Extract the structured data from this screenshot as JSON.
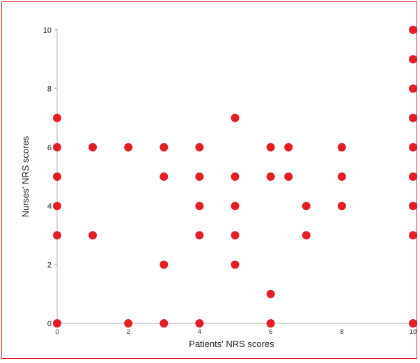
{
  "chart_data": {
    "type": "scatter",
    "title": "",
    "xlabel": "Patients' NRS scores",
    "ylabel": "Nurses' NRS scores",
    "xlim": [
      0,
      10
    ],
    "ylim": [
      0,
      10
    ],
    "x_ticks": [
      "0",
      "2",
      "4",
      "6",
      "8",
      "10"
    ],
    "y_ticks": [
      "0",
      "2",
      "4",
      "6",
      "8",
      "10"
    ],
    "grid": false,
    "marker_color": "#e31e24",
    "axis_color": "#b0b0b0",
    "points": [
      {
        "x": 0,
        "y": 7
      },
      {
        "x": 0,
        "y": 6
      },
      {
        "x": 0,
        "y": 5
      },
      {
        "x": 0,
        "y": 4
      },
      {
        "x": 0,
        "y": 3
      },
      {
        "x": 0,
        "y": 0
      },
      {
        "x": 1,
        "y": 6
      },
      {
        "x": 1,
        "y": 3
      },
      {
        "x": 2,
        "y": 6
      },
      {
        "x": 2,
        "y": 0
      },
      {
        "x": 3,
        "y": 6
      },
      {
        "x": 3,
        "y": 5
      },
      {
        "x": 3,
        "y": 2
      },
      {
        "x": 3,
        "y": 0
      },
      {
        "x": 4,
        "y": 6
      },
      {
        "x": 4,
        "y": 5
      },
      {
        "x": 4,
        "y": 4
      },
      {
        "x": 4,
        "y": 3
      },
      {
        "x": 4,
        "y": 0
      },
      {
        "x": 5,
        "y": 7
      },
      {
        "x": 5,
        "y": 5
      },
      {
        "x": 5,
        "y": 4
      },
      {
        "x": 5,
        "y": 3
      },
      {
        "x": 5,
        "y": 2
      },
      {
        "x": 6,
        "y": 6
      },
      {
        "x": 6,
        "y": 5
      },
      {
        "x": 6,
        "y": 1
      },
      {
        "x": 6,
        "y": 0
      },
      {
        "x": 6.5,
        "y": 6
      },
      {
        "x": 6.5,
        "y": 5
      },
      {
        "x": 7,
        "y": 4
      },
      {
        "x": 7,
        "y": 3
      },
      {
        "x": 8,
        "y": 6
      },
      {
        "x": 8,
        "y": 5
      },
      {
        "x": 8,
        "y": 4
      },
      {
        "x": 10,
        "y": 10
      },
      {
        "x": 10,
        "y": 9
      },
      {
        "x": 10,
        "y": 8
      },
      {
        "x": 10,
        "y": 7
      },
      {
        "x": 10,
        "y": 6
      },
      {
        "x": 10,
        "y": 5
      },
      {
        "x": 10,
        "y": 4
      },
      {
        "x": 10,
        "y": 3
      },
      {
        "x": 10,
        "y": 0
      }
    ]
  }
}
